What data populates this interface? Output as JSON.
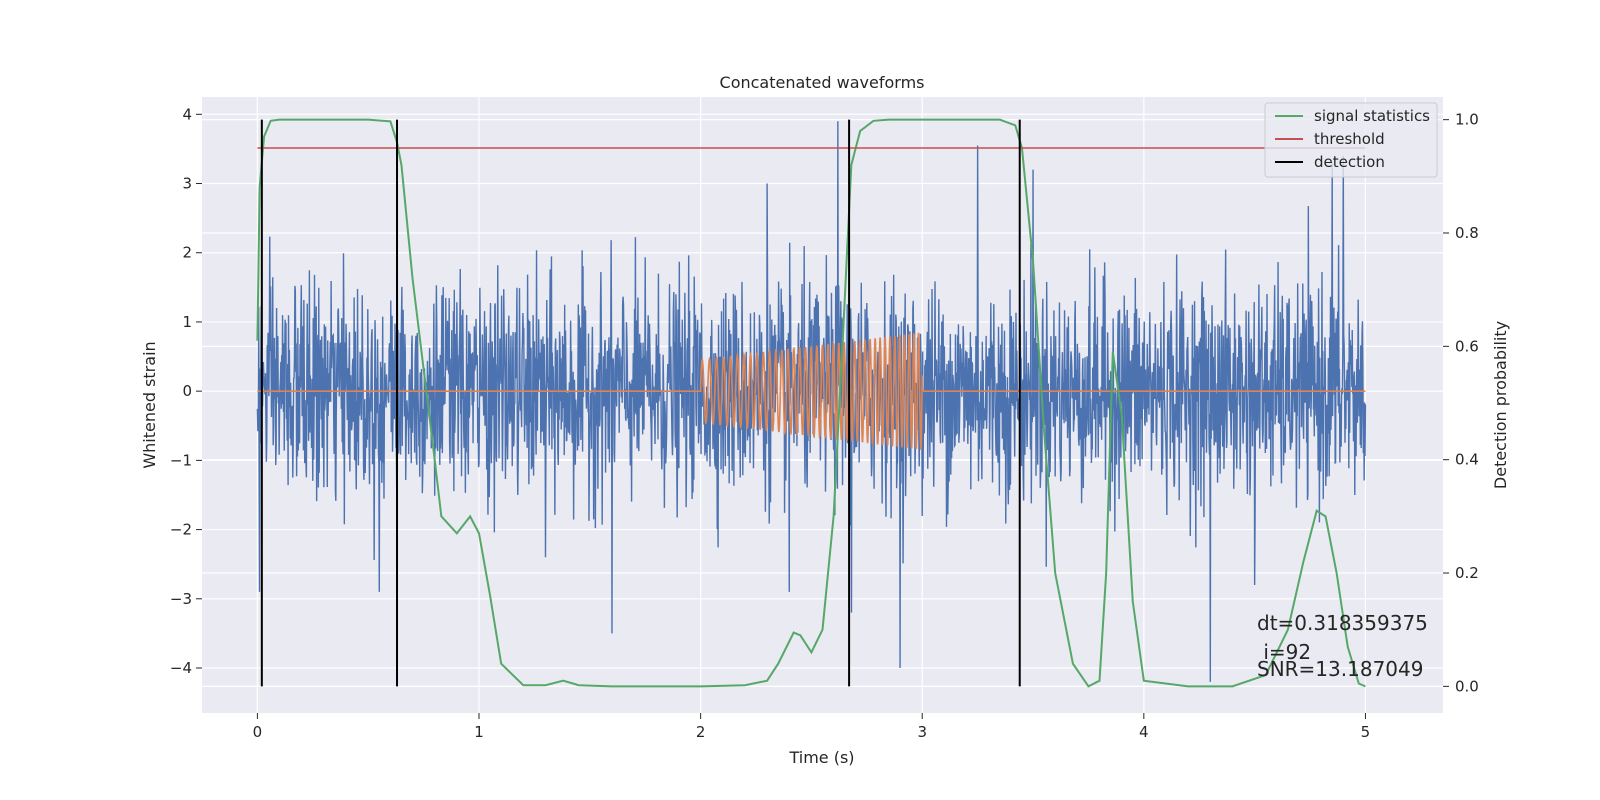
{
  "chart_data": {
    "type": "line",
    "title": "Concatenated waveforms",
    "xlabel": "Time (s)",
    "ylabel_left": "Whitened strain",
    "ylabel_right": "Detection probability",
    "xlim": [
      -0.25,
      5.35
    ],
    "ylim_left": [
      -4.65,
      4.25
    ],
    "ylim_right": [
      -0.047,
      1.04
    ],
    "x_ticks": [
      0,
      1,
      2,
      3,
      4,
      5
    ],
    "y_left_ticks": [
      4,
      3,
      2,
      1,
      0,
      -1,
      -2,
      -3,
      -4
    ],
    "y_left_tick_labels": [
      "4",
      "3",
      "2",
      "1",
      "0",
      "−1",
      "−2",
      "−3",
      "−4"
    ],
    "y_right_ticks": [
      1.0,
      0.8,
      0.6,
      0.4,
      0.2,
      0.0
    ],
    "y_right_tick_labels": [
      "1.0",
      "0.8",
      "0.6",
      "0.4",
      "0.2",
      "0.0"
    ],
    "grid": true,
    "legend_position": "top-right",
    "colors": {
      "background": "#eaeaf2",
      "grid": "#ffffff",
      "noise": "#4c72b0",
      "injection": "#dd8452",
      "signal_statistics": "#55a868",
      "threshold": "#c44e52",
      "detection": "#000000"
    },
    "series": [
      {
        "name": "",
        "axis": "left",
        "description_key": "noise",
        "x_range": [
          0,
          5
        ],
        "amplitude_envelope": [
          [
            0,
            2.4
          ],
          [
            0.6,
            2.6
          ],
          [
            1.0,
            2.8
          ],
          [
            2.0,
            3.2
          ],
          [
            3.0,
            3.2
          ],
          [
            4.0,
            3.1
          ],
          [
            5.0,
            2.8
          ]
        ],
        "spikes": [
          [
            0.01,
            -2.9
          ],
          [
            0.55,
            -2.9
          ],
          [
            0.63,
            2.7
          ],
          [
            1.3,
            -2.4
          ],
          [
            1.6,
            -3.5
          ],
          [
            2.3,
            3.0
          ],
          [
            2.4,
            -2.9
          ],
          [
            2.62,
            3.9
          ],
          [
            2.68,
            -3.2
          ],
          [
            2.9,
            -4.0
          ],
          [
            3.25,
            3.55
          ],
          [
            3.5,
            3.2
          ],
          [
            4.3,
            -4.2
          ],
          [
            4.5,
            -2.8
          ],
          [
            4.9,
            3.4
          ],
          [
            4.85,
            3.3
          ]
        ]
      },
      {
        "name": "",
        "axis": "left",
        "description_key": "injection",
        "x": [
          0,
          2.0,
          3.0,
          5.0
        ],
        "chirp": {
          "start": 2.0,
          "end": 3.0,
          "amp_start": 0.45,
          "amp_end": 0.85,
          "freq_start": 30,
          "freq_end": 48
        }
      },
      {
        "name": "signal statistics",
        "axis": "right",
        "x": [
          0,
          0.01,
          0.03,
          0.06,
          0.1,
          0.5,
          0.6,
          0.63,
          0.65,
          0.7,
          0.8,
          0.83,
          0.9,
          0.96,
          1.0,
          1.05,
          1.1,
          1.2,
          1.3,
          1.38,
          1.45,
          1.6,
          2.0,
          2.2,
          2.3,
          2.35,
          2.42,
          2.45,
          2.5,
          2.55,
          2.6,
          2.64,
          2.68,
          2.72,
          2.78,
          2.85,
          3.0,
          3.35,
          3.42,
          3.45,
          3.5,
          3.55,
          3.6,
          3.68,
          3.75,
          3.8,
          3.83,
          3.86,
          3.9,
          3.95,
          4.0,
          4.2,
          4.4,
          4.55,
          4.65,
          4.72,
          4.78,
          4.82,
          4.87,
          4.92,
          4.97,
          5.0
        ],
        "y": [
          0.61,
          0.88,
          0.97,
          0.998,
          1.0,
          1.0,
          0.997,
          0.96,
          0.92,
          0.72,
          0.4,
          0.3,
          0.27,
          0.3,
          0.27,
          0.16,
          0.04,
          0.002,
          0.002,
          0.01,
          0.002,
          0.0,
          0.0,
          0.002,
          0.01,
          0.04,
          0.095,
          0.09,
          0.06,
          0.1,
          0.3,
          0.6,
          0.92,
          0.98,
          0.998,
          1.0,
          1.0,
          1.0,
          0.99,
          0.95,
          0.75,
          0.45,
          0.2,
          0.04,
          0.0,
          0.01,
          0.2,
          0.59,
          0.48,
          0.15,
          0.01,
          0.0,
          0.0,
          0.02,
          0.1,
          0.22,
          0.31,
          0.3,
          0.2,
          0.07,
          0.005,
          0.0
        ]
      },
      {
        "name": "threshold",
        "axis": "right",
        "x": [
          0,
          5
        ],
        "y": [
          0.95,
          0.95
        ]
      },
      {
        "name": "detection",
        "axis": "right",
        "vlines": [
          0.02,
          0.63,
          2.67,
          3.44
        ],
        "ymin": 0.0,
        "ymax": 1.0
      }
    ],
    "annotations": [
      "dt=0.318359375",
      " i=92",
      "SNR=13.187049"
    ]
  }
}
